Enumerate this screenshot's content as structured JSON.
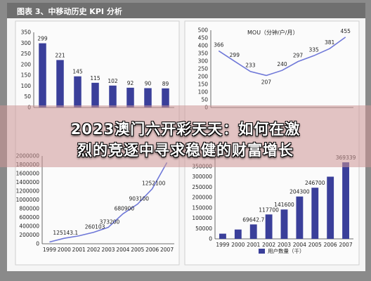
{
  "header": {
    "title": "图表 3、中移动历史 KPI 分析"
  },
  "banner": {
    "line1": "2023澳门六开彩天天：如何在激",
    "line2": "烈的竞逐中寻求稳健的财富增长"
  },
  "colors": {
    "bar": "#3a3f9a",
    "line": "#6f78d8",
    "header": "#6f6f6f",
    "banner": "#cd9696"
  },
  "chart_data": [
    {
      "type": "bar",
      "title": "",
      "categories": [
        "",
        "",
        "",
        "",
        "",
        "",
        "",
        ""
      ],
      "values": [
        299,
        221,
        145,
        115,
        102,
        92,
        90,
        89
      ],
      "labels": [
        "299",
        "221",
        "145",
        "115",
        "102",
        "92",
        "90",
        "89"
      ],
      "yticks": [
        "350",
        "300",
        "250",
        "200",
        "150",
        "100",
        "50",
        "0"
      ],
      "ylim": [
        0,
        350
      ]
    },
    {
      "type": "line",
      "title": "MOU（分钟/户/月）",
      "values": [
        366,
        299,
        233,
        207,
        240,
        297,
        335,
        381,
        455
      ],
      "labels": [
        "366",
        "299",
        "233",
        "207",
        "240",
        "297",
        "335",
        "381",
        "455"
      ],
      "yticks": [
        "500",
        "450",
        "400",
        "350",
        "300",
        "250",
        "200",
        "150",
        "100",
        "50",
        "0"
      ],
      "ylim": [
        0,
        500
      ]
    },
    {
      "type": "line",
      "title": "",
      "categories": [
        "1999",
        "2000",
        "2001",
        "2002",
        "2003",
        "2004",
        "2005",
        "2006",
        "2007"
      ],
      "values": [
        40000,
        125143.1,
        180000,
        260103,
        373200,
        680900,
        903100,
        1252100,
        1850000
      ],
      "labels": [
        "",
        "125143.1",
        "",
        "260103",
        "373200",
        "680900",
        "903100",
        "1252100",
        ""
      ],
      "yticks": [
        "2000000",
        "1800000",
        "1600000",
        "1400000",
        "1200000",
        "1000000",
        "800000",
        "600000",
        "400000",
        "200000",
        "0"
      ],
      "ylim": [
        0,
        2000000
      ]
    },
    {
      "type": "bar",
      "title": "",
      "legend": "用户数量（千）",
      "categories": [
        "1999",
        "2000",
        "2001",
        "2002",
        "2003",
        "2004",
        "2005",
        "2006",
        "2007"
      ],
      "values": [
        25000,
        45000,
        69642.7,
        117700,
        141600,
        204300,
        246700,
        300000,
        369339
      ],
      "labels": [
        "",
        "",
        "69642.7",
        "117700",
        "141600",
        "204300",
        "246700",
        "",
        "369339"
      ],
      "yticks": [
        "400000",
        "350000",
        "300000",
        "250000",
        "200000",
        "150000",
        "100000",
        "50000",
        "0"
      ],
      "ylim": [
        0,
        400000
      ]
    }
  ]
}
